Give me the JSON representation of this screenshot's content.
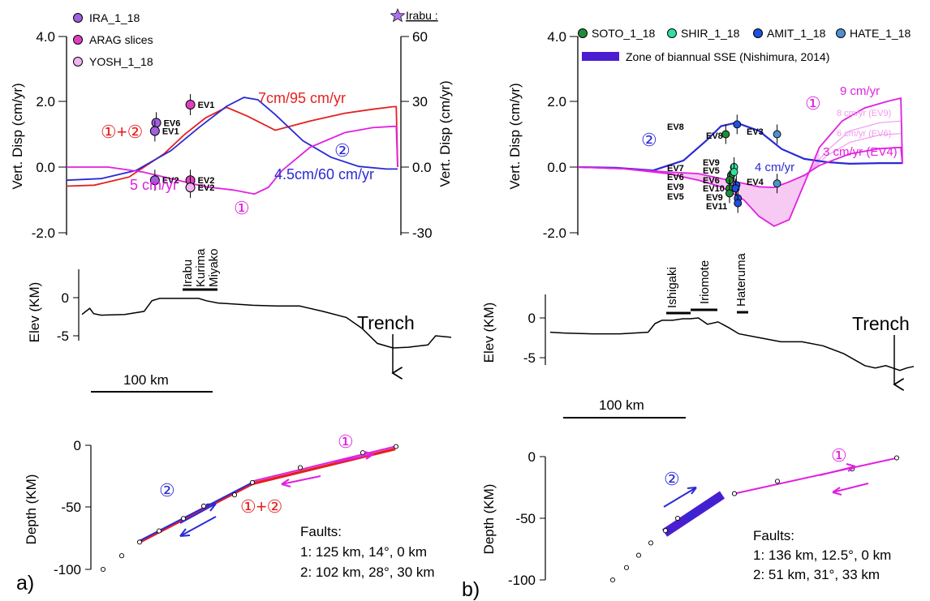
{
  "colors": {
    "red": "#e42020",
    "blue": "#2a2ad6",
    "magenta": "#e020e0",
    "lightmagenta": "#f09af0",
    "fill": "#f6c4f3",
    "zone": "#4a1ed0",
    "black": "#000000"
  },
  "panel_labels": {
    "a": "a)",
    "b": "b)"
  },
  "chart_data": [
    {
      "id": "a-top",
      "type": "line",
      "panel": "a",
      "xlabel": "",
      "ylabel": "Vert. Disp (cm/yr)",
      "ylabel_right": "Vert. Disp (cm/yr)",
      "ylim": [
        -2,
        4
      ],
      "y2lim": [
        -30,
        60
      ],
      "yticks": [
        "4.0",
        "2.0",
        "0.0",
        "-2.0"
      ],
      "y2ticks": [
        "60",
        "30",
        "0.0",
        "-30"
      ],
      "legend": [
        {
          "name": "IRA_1_18",
          "color": "#a060e0"
        },
        {
          "name": "ARAG slices",
          "color": "#e040c0"
        },
        {
          "name": "YOSH_1_18",
          "color": "#f2b4f2"
        }
      ],
      "legend_right": {
        "name": "Irabu :",
        "marker": "star",
        "color": "#b070f0"
      },
      "series": [
        {
          "name": "7cm/95 cm/yr",
          "color": "red",
          "x": [
            0,
            40,
            90,
            140,
            170,
            200,
            230,
            260,
            300,
            350,
            400,
            440,
            470,
            474,
            476
          ],
          "y": [
            -0.58,
            -0.55,
            -0.3,
            0.4,
            1.0,
            1.5,
            1.82,
            1.55,
            1.12,
            1.4,
            1.64,
            1.76,
            1.84,
            1.84,
            0.0
          ]
        },
        {
          "name": "4.5cm/60 cm/yr",
          "color": "blue",
          "x": [
            0,
            50,
            100,
            150,
            190,
            230,
            255,
            275,
            300,
            340,
            380,
            420,
            460,
            476
          ],
          "y": [
            -0.4,
            -0.35,
            -0.1,
            0.5,
            1.2,
            1.85,
            2.12,
            2.05,
            1.6,
            0.8,
            0.3,
            0.02,
            -0.06,
            -0.06
          ]
        },
        {
          "name": "5 cm/yr",
          "color": "magenta",
          "x": [
            0,
            60,
            110,
            160,
            200,
            240,
            270,
            290,
            310,
            350,
            400,
            440,
            470,
            474,
            476
          ],
          "y": [
            0.0,
            0.0,
            -0.15,
            -0.4,
            -0.6,
            -0.7,
            -0.82,
            -0.62,
            -0.1,
            0.6,
            1.05,
            1.2,
            1.24,
            1.24,
            0.0
          ]
        }
      ],
      "points": [
        {
          "label": "EV1",
          "x": 178,
          "y": 1.9,
          "color": "#e040c0"
        },
        {
          "label": "EV6",
          "x": 129,
          "y": 1.35,
          "color": "#a060e0"
        },
        {
          "label": "EV1",
          "x": 127,
          "y": 1.1,
          "color": "#a060e0"
        },
        {
          "label": "EV2",
          "x": 127,
          "y": -0.4,
          "color": "#a060e0"
        },
        {
          "label": "EV2",
          "x": 178,
          "y": -0.4,
          "color": "#e040c0"
        },
        {
          "label": "EV2",
          "x": 178,
          "y": -0.62,
          "color": "#f2b4f2"
        }
      ],
      "annotations": [
        "①+②",
        "②",
        "①"
      ]
    },
    {
      "id": "a-elev",
      "type": "line",
      "panel": "a",
      "ylabel": "Elev (KM)",
      "yticks": [
        "0",
        "-5"
      ],
      "ylim": [
        -7,
        1
      ],
      "scalebar": "100 km",
      "trench": "Trench",
      "places": [
        "Irabu",
        "Kurima",
        "Miyako"
      ],
      "x": [
        0,
        5,
        10,
        15,
        25,
        55,
        80,
        90,
        100,
        120,
        150,
        160,
        175,
        190,
        220,
        250,
        280,
        310,
        340,
        360,
        380,
        400,
        420,
        445,
        455,
        475
      ],
      "y": [
        -2.2,
        -1.8,
        -1.4,
        -2.1,
        -2.3,
        -2.2,
        -1.8,
        -0.4,
        -0.1,
        -0.1,
        -0.1,
        -0.4,
        -0.7,
        -0.8,
        -1.0,
        -1.1,
        -1.1,
        -1.8,
        -2.6,
        -4.0,
        -6.0,
        -6.6,
        -6.5,
        -6.2,
        -5.0,
        -5.2
      ]
    },
    {
      "id": "a-depth",
      "type": "line",
      "panel": "a",
      "ylabel": "Depth (KM)",
      "yticks": [
        "0",
        "-50",
        "-100"
      ],
      "ylim": [
        -100,
        0
      ],
      "faults_title": "Faults:",
      "faults": [
        "1: 125 km, 14°, 0 km",
        "2: 102 km, 28°, 30 km"
      ],
      "fault_red": {
        "x": [
          172,
          311,
          487
        ],
        "y": [
          -78,
          -31,
          -3
        ]
      },
      "fault_blue": {
        "x": [
          172,
          311
        ],
        "y": [
          -77,
          -30
        ]
      },
      "fault_magenta": {
        "x": [
          311,
          487
        ],
        "y": [
          -29,
          -1
        ]
      },
      "nodes": {
        "x": [
          127,
          150,
          172,
          196,
          226,
          251,
          289,
          311,
          370,
          447,
          488
        ],
        "y": [
          -100,
          -89,
          -78,
          -69,
          -59,
          -49,
          -40,
          -30,
          -18,
          -6,
          -1
        ]
      }
    },
    {
      "id": "b-top",
      "type": "line",
      "panel": "b",
      "ylabel": "Vert. Disp (cm/yr)",
      "ylim": [
        -2,
        4
      ],
      "yticks": [
        "4.0",
        "2.0",
        "0.0",
        "-2.0"
      ],
      "legend": [
        {
          "name": "SOTO_1_18",
          "color": "#1f8c3a"
        },
        {
          "name": "SHIR_1_18",
          "color": "#30e0a0"
        },
        {
          "name": "AMIT_1_18",
          "color": "#1f50e0"
        },
        {
          "name": "HATE_1_18",
          "color": "#4f90d0"
        }
      ],
      "zone_label": "Zone of biannual SSE (Nishimura, 2014)",
      "series": [
        {
          "name": "4 cm/yr",
          "color": "blue",
          "x": [
            0,
            50,
            100,
            140,
            170,
            190,
            210,
            240,
            270,
            300,
            330,
            360,
            400,
            430
          ],
          "y": [
            0.0,
            -0.02,
            -0.1,
            0.2,
            0.8,
            1.25,
            1.35,
            1.1,
            0.55,
            0.25,
            0.15,
            0.1,
            0.12,
            0.12
          ]
        },
        {
          "name": "9 cm/yr",
          "color": "magenta",
          "x": [
            0,
            60,
            120,
            160,
            190,
            220,
            240,
            260,
            280,
            300,
            320,
            350,
            380,
            410,
            428,
            430
          ],
          "y": [
            0,
            -0.05,
            -0.2,
            -0.4,
            -0.6,
            -1.0,
            -1.5,
            -1.8,
            -1.6,
            -0.5,
            0.6,
            1.4,
            1.8,
            2.0,
            2.1,
            0.1
          ]
        },
        {
          "name": "3 cm/yr (EV4)",
          "color": "magenta",
          "x": [
            0,
            60,
            120,
            160,
            190,
            220,
            240,
            260,
            280,
            300,
            320,
            360,
            400,
            428,
            430
          ],
          "y": [
            0,
            -0.05,
            -0.15,
            -0.2,
            -0.35,
            -0.5,
            -0.6,
            -0.62,
            -0.45,
            -0.25,
            0.05,
            0.4,
            0.56,
            0.6,
            0.1
          ]
        }
      ],
      "thin_series": [
        {
          "name": "8 cm/yr (EV9)",
          "x": [
            300,
            330,
            360,
            400,
            428
          ],
          "y": [
            -0.3,
            0.5,
            1.1,
            1.35,
            1.4
          ]
        },
        {
          "name": "6 cm/yr (EV6)",
          "x": [
            300,
            330,
            360,
            400,
            428
          ],
          "y": [
            -0.3,
            0.35,
            0.75,
            0.98,
            1.02
          ]
        }
      ],
      "points": [
        {
          "label": "EV8",
          "x": 211,
          "y": 1.3,
          "color": "#1f50e0"
        },
        {
          "label": "EV8",
          "x": 196,
          "y": 1.0,
          "color": "#1f8c3a"
        },
        {
          "label": "EV3",
          "x": 264,
          "y": 1.0,
          "color": "#4f90d0"
        },
        {
          "label": "EV9",
          "x": 207,
          "y": 0.0,
          "color": "#30e0a0"
        },
        {
          "label": "EV7",
          "x": 203,
          "y": -0.25,
          "color": "#1f8c3a"
        },
        {
          "label": "EV5",
          "x": 207,
          "y": -0.15,
          "color": "#30e0a0"
        },
        {
          "label": "EV6",
          "x": 201,
          "y": -0.4,
          "color": "#1f8c3a"
        },
        {
          "label": "EV9",
          "x": 201,
          "y": -0.65,
          "color": "#1f8c3a"
        },
        {
          "label": "EV5",
          "x": 201,
          "y": -0.8,
          "color": "#1f8c3a"
        },
        {
          "label": "EV6",
          "x": 210,
          "y": -0.55,
          "color": "#1f50e0"
        },
        {
          "label": "EV10",
          "x": 209,
          "y": -0.65,
          "color": "#1f50e0"
        },
        {
          "label": "EV9",
          "x": 212,
          "y": -0.95,
          "color": "#1f50e0"
        },
        {
          "label": "EV11",
          "x": 212,
          "y": -1.1,
          "color": "#1f50e0"
        },
        {
          "label": "EV4",
          "x": 264,
          "y": -0.5,
          "color": "#4f90d0"
        }
      ],
      "annotations": [
        "①",
        "②"
      ]
    },
    {
      "id": "b-elev",
      "type": "line",
      "panel": "b",
      "ylabel": "Elev (KM)",
      "yticks": [
        "0",
        "-5"
      ],
      "ylim": [
        -7,
        2
      ],
      "scalebar": "100 km",
      "trench": "Trench",
      "places": [
        "Ishigaki",
        "Iriomote",
        "Hateruma"
      ],
      "x": [
        0,
        20,
        60,
        100,
        140,
        150,
        160,
        175,
        190,
        200,
        212,
        225,
        240,
        255,
        270,
        300,
        330,
        360,
        390,
        420,
        450,
        465,
        480,
        500,
        510,
        520
      ],
      "y": [
        -1.8,
        -1.9,
        -2.0,
        -2.0,
        -1.8,
        -0.7,
        -0.3,
        -0.3,
        -0.1,
        -0.1,
        0.0,
        -0.8,
        -0.5,
        -1.2,
        -2.0,
        -2.5,
        -3.0,
        -3.0,
        -3.5,
        -4.5,
        -6.0,
        -6.3,
        -6.0,
        -6.6,
        -6.3,
        -6.1
      ]
    },
    {
      "id": "b-depth",
      "type": "line",
      "panel": "b",
      "ylabel": "Depth (KM)",
      "yticks": [
        "0",
        "-50",
        "-100"
      ],
      "ylim": [
        -100,
        0
      ],
      "faults_title": "Faults:",
      "faults": [
        "1: 136 km, 12.5°, 0 km",
        "2: 51 km, 31°, 33 km"
      ],
      "fault_magenta": {
        "x": [
          205,
          406
        ],
        "y": [
          -30,
          -1
        ]
      },
      "fault_zone": {
        "x": [
          119,
          190
        ],
        "y": [
          -62,
          -31
        ]
      },
      "nodes": {
        "x": [
          55,
          72,
          87,
          102,
          120,
          135,
          205,
          258,
          350,
          405
        ],
        "y": [
          -100,
          -90,
          -80,
          -70,
          -60,
          -50,
          -30,
          -20,
          -10,
          -1
        ]
      }
    }
  ]
}
